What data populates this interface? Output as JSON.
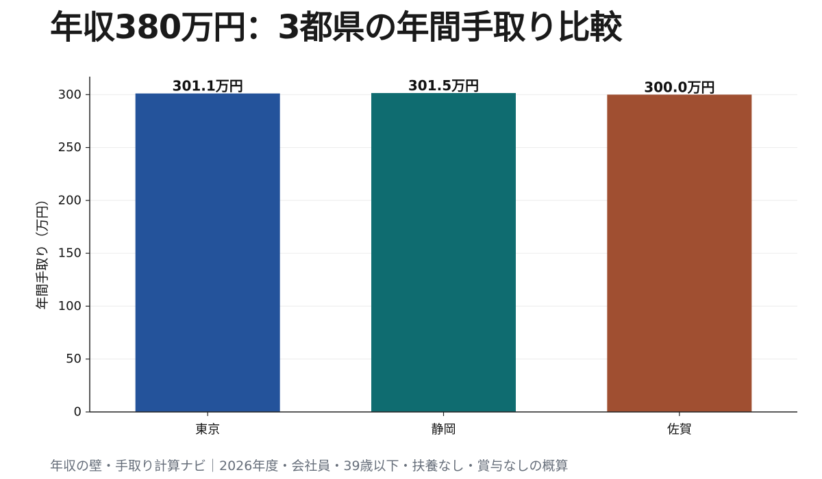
{
  "title": "年収380万円：3都県の年間手取り比較",
  "footnote": "年収の壁・手取り計算ナビ｜2026年度・会社員・39歳以下・扶養なし・賞与なしの概算",
  "chart_data": {
    "type": "bar",
    "title": "年収380万円：3都県の年間手取り比較",
    "xlabel": "",
    "ylabel": "年間手取り（万円）",
    "categories": [
      "東京",
      "静岡",
      "佐賀"
    ],
    "values": [
      301.1,
      301.5,
      300.0
    ],
    "value_labels": [
      "301.1万円",
      "301.5万円",
      "300.0万円"
    ],
    "colors": [
      "#24539b",
      "#0f6c70",
      "#a04f31"
    ],
    "ylim": [
      0,
      317
    ],
    "yticks": [
      0,
      50,
      100,
      150,
      200,
      250,
      300
    ],
    "grid": true,
    "legend": "none"
  }
}
